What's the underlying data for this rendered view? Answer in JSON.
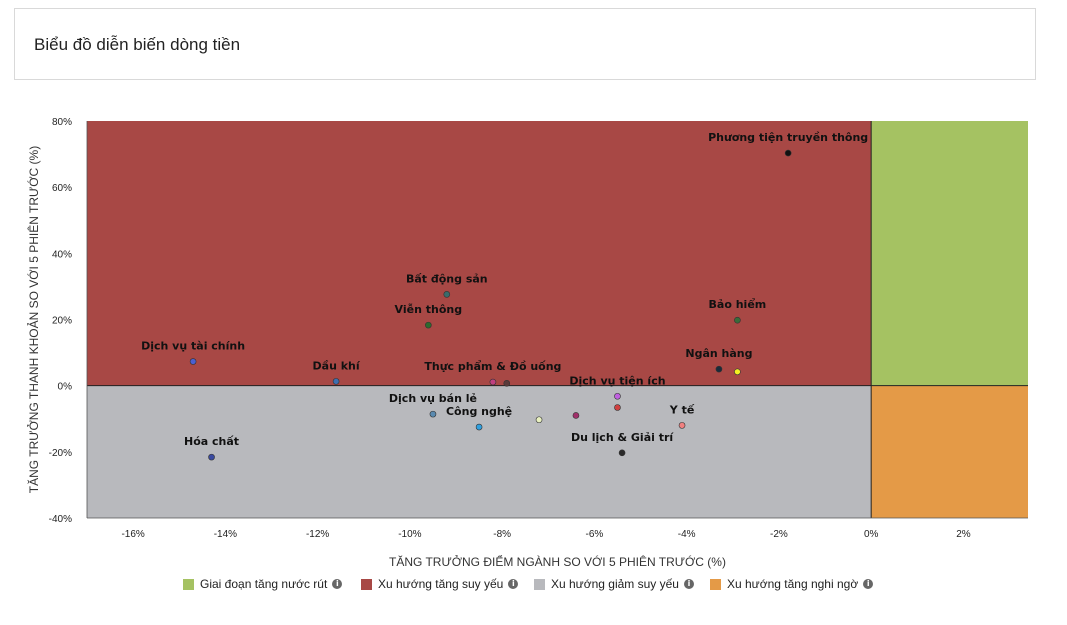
{
  "header": {
    "title": "Biểu đồ diễn biến dòng tiền"
  },
  "chart_data": {
    "type": "scatter",
    "title": "Biểu đồ diễn biến dòng tiền",
    "xlabel": "TĂNG TRƯỞNG ĐIỂM NGÀNH SO VỚI 5 PHIÊN TRƯỚC (%)",
    "ylabel": "TĂNG TRƯỞNG THANH KHOẢN SO VỚI 5 PHIÊN TRƯỚC (%)",
    "xlim": [
      -17,
      3.4
    ],
    "ylim": [
      -40,
      80
    ],
    "xticks": [
      -16,
      -14,
      -12,
      -10,
      -8,
      -6,
      -4,
      -2,
      0,
      2
    ],
    "xtick_labels": [
      "-16%",
      "-14%",
      "-12%",
      "-10%",
      "-8%",
      "-6%",
      "-4%",
      "-2%",
      "0%",
      "2%"
    ],
    "yticks": [
      80,
      60,
      40,
      20,
      0,
      -20,
      -40
    ],
    "ytick_labels": [
      "80%",
      "60%",
      "40%",
      "20%",
      "0%",
      "-20%",
      "-40%"
    ],
    "quadrants": [
      {
        "name": "Giai đoạn tăng nước rút",
        "color": "#a5c262",
        "x_side": "positive",
        "y_side": "positive"
      },
      {
        "name": "Xu hướng tăng suy yếu",
        "color": "#a84845",
        "x_side": "negative",
        "y_side": "positive"
      },
      {
        "name": "Xu hướng giảm suy yếu",
        "color": "#b8b9bd",
        "x_side": "negative",
        "y_side": "negative"
      },
      {
        "name": "Xu hướng tăng nghi ngờ",
        "color": "#e49a47",
        "x_side": "positive",
        "y_side": "negative"
      }
    ],
    "points": [
      {
        "label": "Phương tiện truyền thông",
        "x": -1.8,
        "y": 70.3,
        "color": "#111111"
      },
      {
        "label": "Bất động sản",
        "x": -9.2,
        "y": 27.6,
        "color": "#3a6b6b"
      },
      {
        "label": "Viễn thông",
        "x": -9.6,
        "y": 18.3,
        "color": "#2d6a2d"
      },
      {
        "label": "Bảo hiểm",
        "x": -2.9,
        "y": 19.8,
        "color": "#3a6b3a"
      },
      {
        "label": "Dịch vụ tài chính",
        "x": -14.7,
        "y": 7.3,
        "color": "#4b5fd1"
      },
      {
        "label": "Dầu khí",
        "x": -11.6,
        "y": 1.3,
        "color": "#3f6fb0"
      },
      {
        "label": "Ngân hàng",
        "x": -3.3,
        "y": 5.0,
        "color": "#1a2b3a"
      },
      {
        "label": "",
        "x": -2.9,
        "y": 4.2,
        "color": "#f4f022"
      },
      {
        "label": "Thực phẩm & Đồ uống",
        "x": -8.2,
        "y": 1.1,
        "color": "#c04080"
      },
      {
        "label": "",
        "x": -7.9,
        "y": 0.7,
        "color": "#5a3a3a"
      },
      {
        "label": "Dịch vụ tiện ích",
        "x": -5.5,
        "y": -3.2,
        "color": "#c060e0"
      },
      {
        "label": "Dịch vụ bán lẻ",
        "x": -9.5,
        "y": -8.6,
        "color": "#5a8ab0"
      },
      {
        "label": "Công nghệ",
        "x": -8.5,
        "y": -12.5,
        "color": "#30a0e0"
      },
      {
        "label": "",
        "x": -7.2,
        "y": -10.3,
        "color": "#e8f0c0"
      },
      {
        "label": "",
        "x": -6.4,
        "y": -9.0,
        "color": "#a0306a"
      },
      {
        "label": "",
        "x": -5.5,
        "y": -6.6,
        "color": "#d04040"
      },
      {
        "label": "Y tế",
        "x": -4.1,
        "y": -12.0,
        "color": "#f08080"
      },
      {
        "label": "Du lịch & Giải trí",
        "x": -5.4,
        "y": -20.3,
        "color": "#2a2a2a"
      },
      {
        "label": "Hóa chất",
        "x": -14.3,
        "y": -21.6,
        "color": "#3a4aa0"
      }
    ]
  },
  "legend": {
    "items": [
      {
        "label": "Giai đoạn tăng nước rút",
        "color": "#a5c262"
      },
      {
        "label": "Xu hướng tăng suy yếu",
        "color": "#a84845"
      },
      {
        "label": "Xu hướng giảm suy yếu",
        "color": "#b8b9bd"
      },
      {
        "label": "Xu hướng tăng nghi ngờ",
        "color": "#e49a47"
      }
    ],
    "info_icon": "info-circle-icon",
    "info_glyph": "i"
  }
}
